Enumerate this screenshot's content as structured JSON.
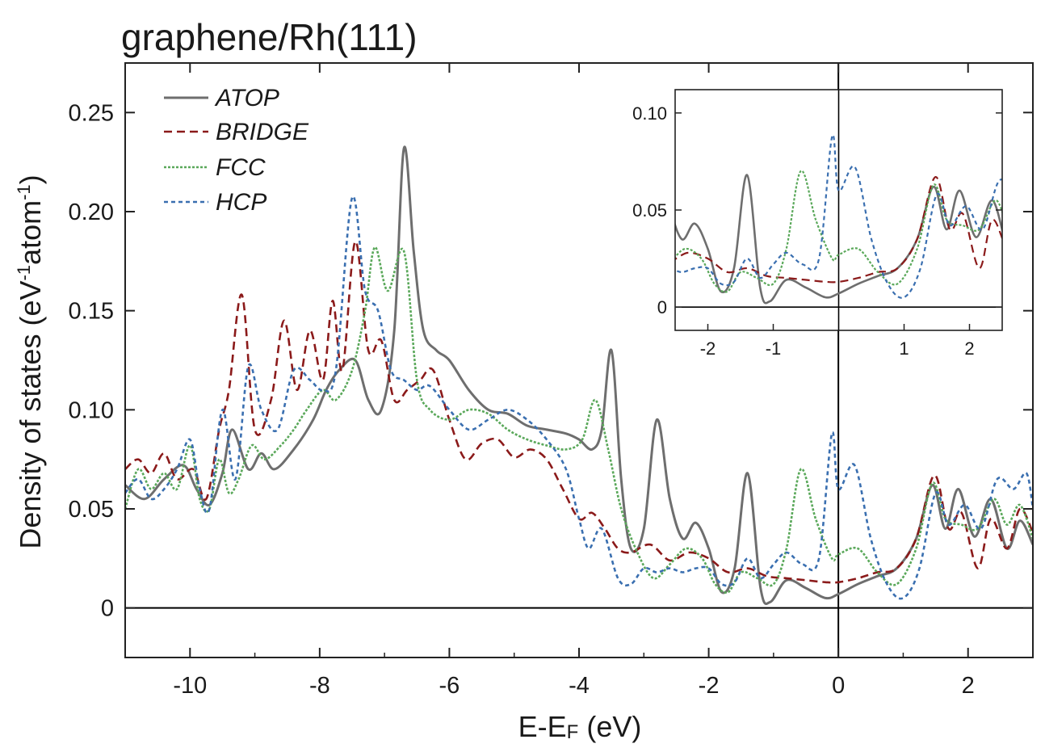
{
  "chart_data": {
    "type": "line",
    "title": "graphene/Rh(111)",
    "xlabel": {
      "main": "E-E",
      "sub": "F",
      "unit": " (eV)"
    },
    "ylabel": {
      "part1": "Density of states (eV",
      "sup1": "-1",
      "part2": "atom",
      "sup2": "-1",
      "part3": ")"
    },
    "xlim": [
      -11.0,
      3.0
    ],
    "ylim": [
      -0.025,
      0.275
    ],
    "xticks": [
      -10,
      -8,
      -6,
      -4,
      -2,
      0,
      2
    ],
    "xtick_labels": [
      "-10",
      "-8",
      "-6",
      "-4",
      "-2",
      "0",
      "2"
    ],
    "yticks": [
      0,
      0.05,
      0.1,
      0.15,
      0.2,
      0.25
    ],
    "ytick_labels": [
      "0",
      "0.05",
      "0.10",
      "0.15",
      "0.20",
      "0.25"
    ],
    "legend_position": "top-left",
    "series": [
      {
        "name": "ATOP",
        "color": "#6e6e6e",
        "dash": "solid",
        "x": [
          -11,
          -10.7,
          -10.4,
          -10.1,
          -9.9,
          -9.7,
          -9.5,
          -9.35,
          -9.1,
          -8.9,
          -8.7,
          -8.4,
          -8.1,
          -7.9,
          -7.7,
          -7.45,
          -7.25,
          -7.05,
          -6.85,
          -6.7,
          -6.55,
          -6.4,
          -6.2,
          -6.0,
          -5.7,
          -5.4,
          -5.1,
          -4.8,
          -4.5,
          -4.2,
          -4.0,
          -3.8,
          -3.65,
          -3.5,
          -3.35,
          -3.2,
          -3.0,
          -2.8,
          -2.6,
          -2.4,
          -2.2,
          -2.0,
          -1.8,
          -1.6,
          -1.4,
          -1.2,
          -1.05,
          -0.8,
          -0.5,
          -0.2,
          0.0,
          0.3,
          0.6,
          0.9,
          1.2,
          1.45,
          1.65,
          1.85,
          2.1,
          2.35,
          2.6,
          2.8,
          3.0
        ],
        "y": [
          0.062,
          0.055,
          0.065,
          0.072,
          0.06,
          0.052,
          0.068,
          0.09,
          0.07,
          0.078,
          0.07,
          0.08,
          0.095,
          0.11,
          0.12,
          0.125,
          0.105,
          0.1,
          0.14,
          0.232,
          0.18,
          0.14,
          0.13,
          0.125,
          0.11,
          0.1,
          0.098,
          0.092,
          0.09,
          0.088,
          0.085,
          0.08,
          0.09,
          0.13,
          0.065,
          0.03,
          0.04,
          0.095,
          0.055,
          0.035,
          0.043,
          0.03,
          0.008,
          0.02,
          0.068,
          0.01,
          0.003,
          0.014,
          0.01,
          0.005,
          0.007,
          0.012,
          0.016,
          0.02,
          0.035,
          0.062,
          0.04,
          0.06,
          0.036,
          0.055,
          0.03,
          0.044,
          0.032
        ]
      },
      {
        "name": "BRIDGE",
        "color": "#8b1a1a",
        "dash": "10,6",
        "x": [
          -11,
          -10.8,
          -10.6,
          -10.4,
          -10.2,
          -9.95,
          -9.75,
          -9.55,
          -9.4,
          -9.2,
          -9.0,
          -8.75,
          -8.55,
          -8.35,
          -8.15,
          -7.95,
          -7.8,
          -7.65,
          -7.45,
          -7.25,
          -7.05,
          -6.85,
          -6.65,
          -6.45,
          -6.25,
          -6.0,
          -5.75,
          -5.5,
          -5.25,
          -5.0,
          -4.75,
          -4.5,
          -4.25,
          -4.0,
          -3.8,
          -3.6,
          -3.4,
          -3.2,
          -2.9,
          -2.6,
          -2.3,
          -2.0,
          -1.7,
          -1.4,
          -1.1,
          -0.8,
          -0.5,
          -0.2,
          0.0,
          0.3,
          0.6,
          0.9,
          1.2,
          1.48,
          1.7,
          1.9,
          2.15,
          2.35,
          2.6,
          2.8,
          3.0
        ],
        "y": [
          0.07,
          0.075,
          0.068,
          0.078,
          0.065,
          0.07,
          0.055,
          0.09,
          0.11,
          0.158,
          0.09,
          0.105,
          0.145,
          0.11,
          0.14,
          0.115,
          0.155,
          0.12,
          0.185,
          0.13,
          0.135,
          0.105,
          0.11,
          0.115,
          0.12,
          0.095,
          0.075,
          0.083,
          0.085,
          0.076,
          0.08,
          0.075,
          0.06,
          0.045,
          0.048,
          0.04,
          0.03,
          0.028,
          0.032,
          0.024,
          0.028,
          0.025,
          0.018,
          0.02,
          0.016,
          0.015,
          0.014,
          0.013,
          0.013,
          0.015,
          0.018,
          0.02,
          0.035,
          0.067,
          0.04,
          0.048,
          0.02,
          0.045,
          0.03,
          0.05,
          0.038
        ]
      },
      {
        "name": "FCC",
        "color": "#5aa85a",
        "dash": "3,2",
        "x": [
          -11,
          -10.8,
          -10.6,
          -10.4,
          -10.2,
          -10.0,
          -9.85,
          -9.7,
          -9.55,
          -9.4,
          -9.25,
          -9.05,
          -8.85,
          -8.6,
          -8.4,
          -8.2,
          -7.95,
          -7.75,
          -7.5,
          -7.3,
          -7.15,
          -6.95,
          -6.7,
          -6.5,
          -6.3,
          -6.0,
          -5.7,
          -5.4,
          -5.1,
          -4.8,
          -4.5,
          -4.2,
          -3.95,
          -3.75,
          -3.55,
          -3.35,
          -3.1,
          -2.85,
          -2.6,
          -2.35,
          -2.1,
          -1.9,
          -1.7,
          -1.5,
          -1.25,
          -1.0,
          -0.8,
          -0.58,
          -0.35,
          -0.1,
          0.0,
          0.3,
          0.6,
          0.9,
          1.2,
          1.45,
          1.65,
          1.9,
          2.15,
          2.4,
          2.6,
          2.8,
          3.0
        ],
        "y": [
          0.05,
          0.07,
          0.06,
          0.068,
          0.06,
          0.082,
          0.055,
          0.05,
          0.075,
          0.058,
          0.065,
          0.082,
          0.075,
          0.082,
          0.09,
          0.1,
          0.11,
          0.105,
          0.12,
          0.15,
          0.182,
          0.16,
          0.18,
          0.115,
          0.1,
          0.095,
          0.1,
          0.098,
          0.09,
          0.085,
          0.082,
          0.08,
          0.085,
          0.105,
          0.08,
          0.05,
          0.028,
          0.015,
          0.022,
          0.03,
          0.025,
          0.012,
          0.008,
          0.018,
          0.015,
          0.012,
          0.03,
          0.07,
          0.045,
          0.025,
          0.027,
          0.03,
          0.018,
          0.012,
          0.03,
          0.063,
          0.045,
          0.042,
          0.04,
          0.055,
          0.042,
          0.052,
          0.035
        ]
      },
      {
        "name": "HCP",
        "color": "#3a6fb0",
        "dash": "5,4",
        "x": [
          -11,
          -10.8,
          -10.6,
          -10.4,
          -10.2,
          -10.0,
          -9.85,
          -9.7,
          -9.5,
          -9.3,
          -9.1,
          -8.9,
          -8.65,
          -8.4,
          -8.15,
          -7.95,
          -7.75,
          -7.5,
          -7.3,
          -7.1,
          -6.9,
          -6.7,
          -6.5,
          -6.3,
          -6.0,
          -5.7,
          -5.4,
          -5.1,
          -4.8,
          -4.5,
          -4.2,
          -4.0,
          -3.85,
          -3.65,
          -3.4,
          -3.2,
          -3.0,
          -2.8,
          -2.6,
          -2.4,
          -2.2,
          -2.0,
          -1.8,
          -1.6,
          -1.4,
          -1.2,
          -1.0,
          -0.8,
          -0.55,
          -0.3,
          -0.1,
          0.0,
          0.25,
          0.5,
          0.75,
          1.0,
          1.25,
          1.5,
          1.7,
          1.95,
          2.2,
          2.45,
          2.7,
          2.9,
          3.0
        ],
        "y": [
          0.058,
          0.065,
          0.055,
          0.06,
          0.07,
          0.085,
          0.06,
          0.05,
          0.1,
          0.065,
          0.122,
          0.1,
          0.09,
          0.12,
          0.115,
          0.11,
          0.12,
          0.207,
          0.16,
          0.15,
          0.12,
          0.115,
          0.11,
          0.112,
          0.1,
          0.09,
          0.095,
          0.1,
          0.095,
          0.085,
          0.07,
          0.045,
          0.03,
          0.04,
          0.015,
          0.012,
          0.02,
          0.018,
          0.02,
          0.018,
          0.02,
          0.02,
          0.012,
          0.013,
          0.025,
          0.015,
          0.022,
          0.028,
          0.022,
          0.025,
          0.088,
          0.06,
          0.072,
          0.035,
          0.012,
          0.005,
          0.02,
          0.058,
          0.042,
          0.052,
          0.04,
          0.065,
          0.06,
          0.068,
          0.05
        ]
      }
    ],
    "inset": {
      "xlim": [
        -2.5,
        2.5
      ],
      "ylim": [
        -0.012,
        0.112
      ],
      "xticks": [
        -2,
        -1,
        1,
        2
      ],
      "xtick_labels": [
        "-2",
        "-1",
        "1",
        "2"
      ],
      "yticks": [
        0,
        0.05,
        0.1
      ],
      "ytick_labels": [
        "0",
        "0.05",
        "0.10"
      ]
    }
  }
}
